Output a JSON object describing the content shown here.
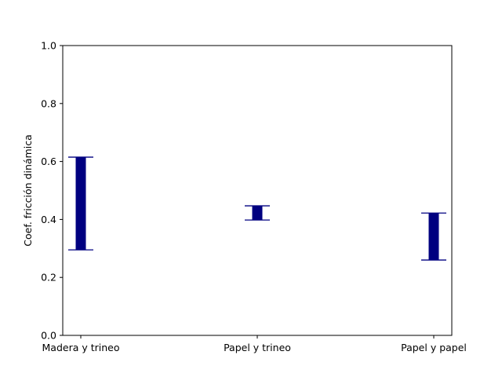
{
  "chart_data": {
    "type": "bar",
    "title": "",
    "xlabel": "",
    "ylabel": "Coef. fricción dinámica",
    "ylim": [
      0,
      1.0
    ],
    "yticks": [
      "0.0",
      "0.2",
      "0.4",
      "0.6",
      "0.8",
      "1.0"
    ],
    "categories": [
      "Madera y trineo",
      "Papel y trineo",
      "Papel y papel"
    ],
    "series": [
      {
        "low": [
          0.295,
          0.398,
          0.26
        ],
        "high": [
          0.615,
          0.447,
          0.422
        ]
      }
    ],
    "grid": false,
    "legend": false,
    "colors": {
      "bar": "#000080",
      "axis": "#000000"
    }
  }
}
